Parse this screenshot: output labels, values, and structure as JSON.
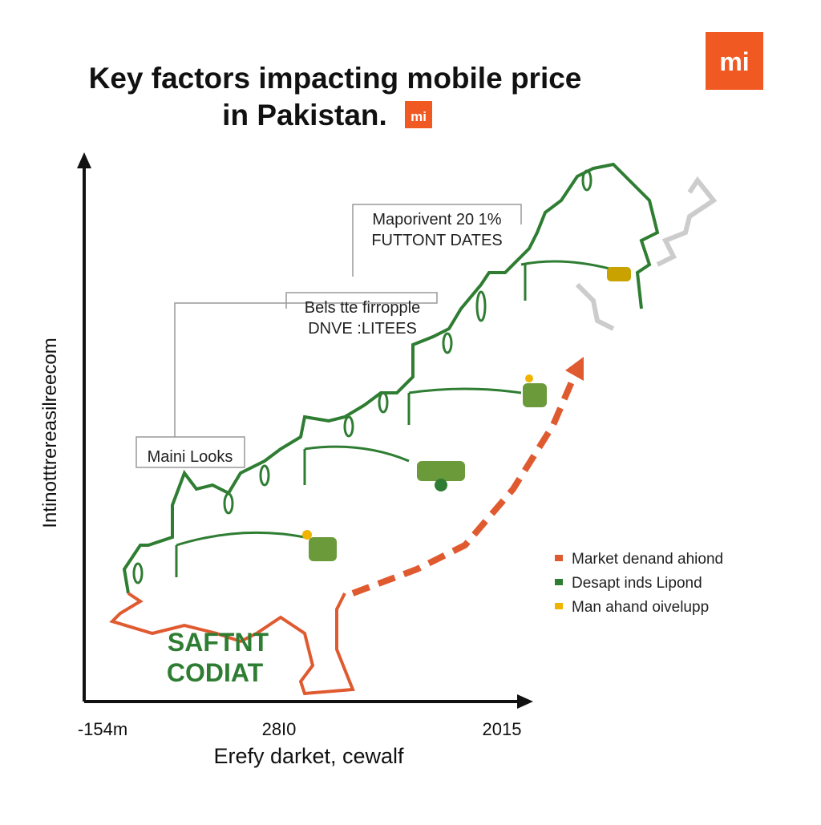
{
  "header": {
    "title_line1": "Key factors impacting mobile price",
    "title_line2": "in Pakistan.",
    "logo": "mi",
    "small_logo": "mi"
  },
  "callouts": [
    {
      "line1": "Maporivent 20 1%",
      "line2": "FUTTONT DATES"
    },
    {
      "line1": "Bels tte firropple",
      "line2": "DNVE :LITEES"
    },
    {
      "line1": "Maini Looks"
    }
  ],
  "region_label": {
    "line1": "SAFTNT",
    "line2": "CODIAT"
  },
  "axes": {
    "y_label": "Intinotttrereasilreecom",
    "x_ticks": [
      "-154m",
      "28I0",
      "2015"
    ],
    "x_label": "Erefy darket, cewalf"
  },
  "legend": [
    "Market denand ahiond",
    "Desapt inds Lipond",
    "Man ahand oivelupp"
  ]
}
